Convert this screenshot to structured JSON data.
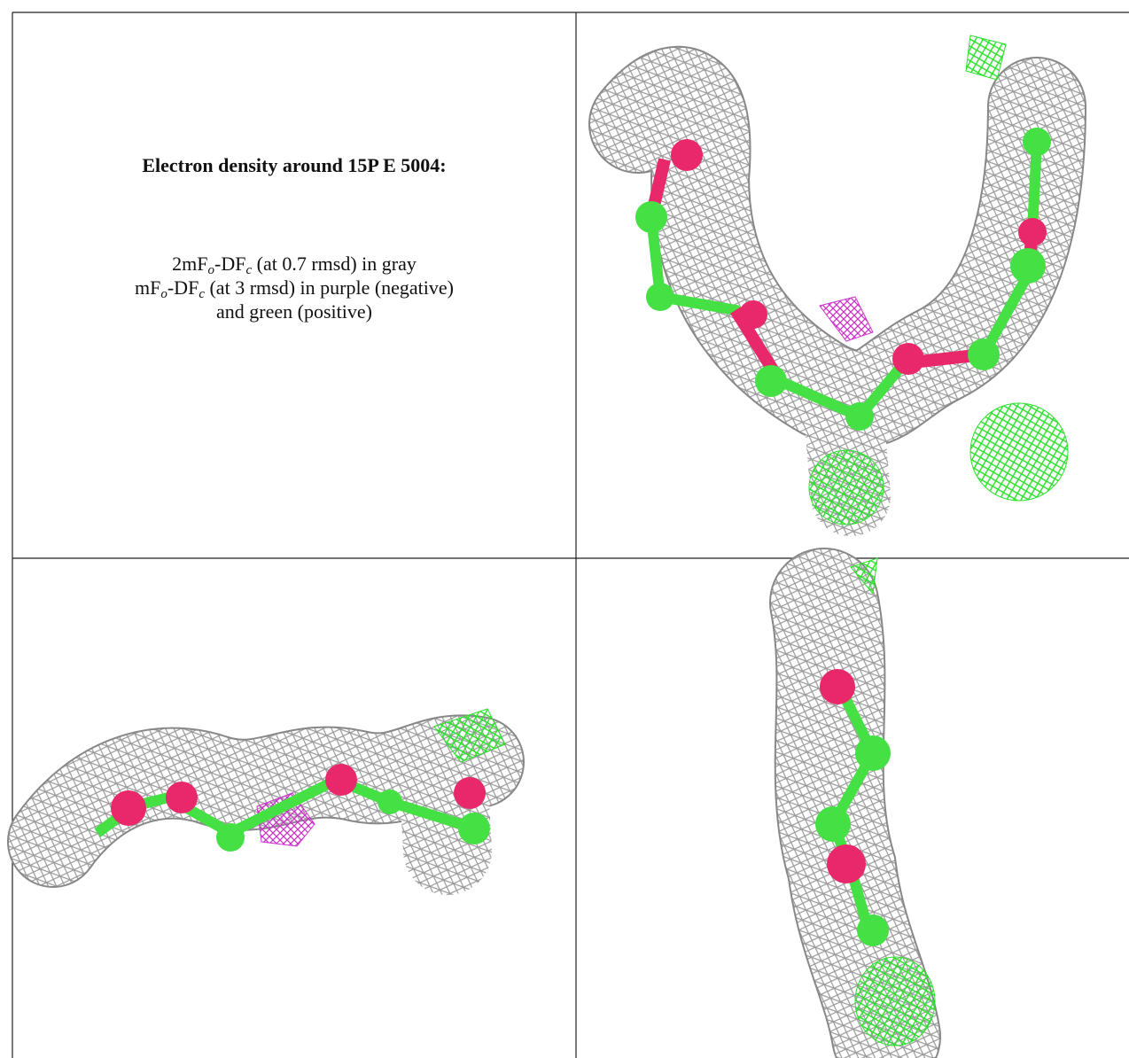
{
  "caption": {
    "title": "Electron density around 15P E 5004:",
    "lines": [
      {
        "a": "2mF",
        "s1": "o",
        "b": "-DF",
        "s2": "c",
        "rest": " (at 0.7 rmsd) in gray"
      },
      {
        "a": "mF",
        "s1": "o",
        "b": "-DF",
        "s2": "c",
        "rest": " (at 3 rmsd) in purple (negative)"
      },
      {
        "a": "and green (positive)"
      }
    ]
  }
}
